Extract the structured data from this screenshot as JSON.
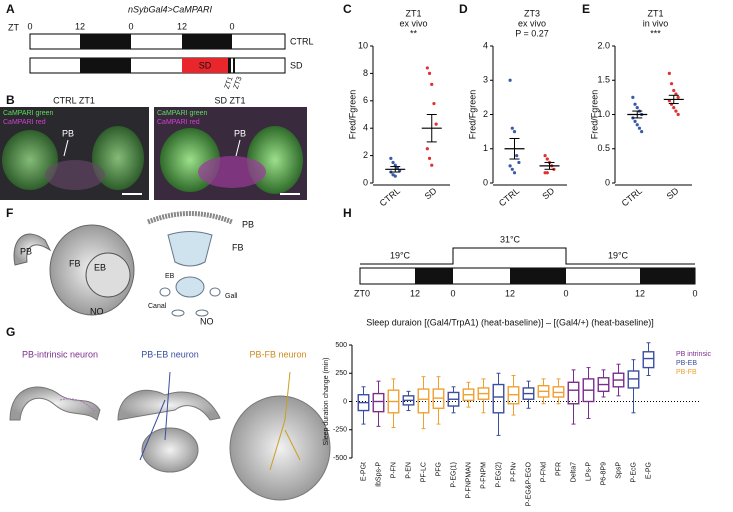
{
  "figure": {
    "panel_labels": [
      "A",
      "B",
      "C",
      "D",
      "E",
      "F",
      "G",
      "H"
    ],
    "a": {
      "title": "nSybGal4>CaMPARI",
      "zt": "ZT",
      "zt_ticks": [
        "0",
        "12",
        "0",
        "12",
        "0"
      ],
      "rows": [
        "CTRL",
        "SD"
      ],
      "sd_label": "SD",
      "marks": [
        "ZT1",
        "ZT3"
      ]
    },
    "b": {
      "images": [
        "CTRL ZT1",
        "SD ZT1"
      ],
      "channels": [
        "CaMPARI green",
        "CaMPARI red"
      ],
      "arrow": "PB"
    },
    "f": {
      "render_labels": [
        "PB",
        "FB",
        "EB",
        "NO"
      ],
      "schematic_labels": [
        "PB",
        "FB",
        "EB",
        "Gall",
        "Canal",
        "NO"
      ]
    },
    "g": {
      "titles": [
        "PB-intrinsic neuron",
        "PB-EB neuron",
        "PB-FB neuron"
      ]
    },
    "h": {
      "temps": [
        "19°C",
        "31°C",
        "19°C"
      ],
      "zt": "ZT0",
      "zt_ticks": [
        "12",
        "0",
        "12",
        "0",
        "12",
        "0"
      ]
    }
  },
  "chart_data": [
    {
      "type": "dotplot",
      "title": [
        "ZT1",
        "ex vivo"
      ],
      "annotation": "**",
      "ylabel": "Fred/Fgreen",
      "categories": [
        "CTRL",
        "SD"
      ],
      "ylim": [
        0,
        10
      ],
      "yticks": [
        0,
        2,
        4,
        6,
        8,
        10
      ],
      "points": [
        {
          "color": "#3a5ba8",
          "values": [
            1.8,
            1.5,
            1.3,
            1.1,
            0.9,
            0.8,
            0.6,
            0.5
          ]
        },
        {
          "color": "#e03030",
          "values": [
            8.4,
            8.0,
            7.2,
            5.8,
            4.3,
            2.5,
            1.8,
            1.3
          ]
        }
      ],
      "mean": [
        1.0,
        4.0
      ],
      "sem": [
        0.2,
        1.0
      ]
    },
    {
      "type": "dotplot",
      "title": [
        "ZT3",
        "ex vivo"
      ],
      "annotation": "P = 0.27",
      "ylabel": "Fred/Fgreen",
      "categories": [
        "CTRL",
        "SD"
      ],
      "ylim": [
        0,
        4
      ],
      "yticks": [
        0,
        1,
        2,
        3,
        4
      ],
      "points": [
        {
          "color": "#3a5ba8",
          "values": [
            3.0,
            1.6,
            1.5,
            0.8,
            0.6,
            0.5,
            0.4,
            0.3
          ]
        },
        {
          "color": "#e03030",
          "values": [
            0.8,
            0.7,
            0.6,
            0.5,
            0.4,
            0.3,
            0.3
          ]
        }
      ],
      "mean": [
        1.0,
        0.5
      ],
      "sem": [
        0.3,
        0.1
      ]
    },
    {
      "type": "dotplot",
      "title": [
        "ZT1",
        "in vivo"
      ],
      "annotation": "***",
      "ylabel": "Fred/Fgreen",
      "categories": [
        "CTRL",
        "SD"
      ],
      "ylim": [
        0,
        2
      ],
      "yticks": [
        0,
        0.5,
        {
          "value": 1,
          "label": "1.0"
        },
        1.5,
        {
          "value": 2,
          "label": "2.0"
        }
      ],
      "points": [
        {
          "color": "#3a5ba8",
          "values": [
            1.25,
            1.15,
            1.1,
            1.05,
            1.0,
            0.95,
            0.9,
            0.85,
            0.8,
            0.75
          ]
        },
        {
          "color": "#e03030",
          "values": [
            1.6,
            1.45,
            1.35,
            1.3,
            1.25,
            1.2,
            1.15,
            1.1,
            1.05,
            1.0
          ]
        }
      ],
      "mean": [
        1.0,
        1.22
      ],
      "sem": [
        0.05,
        0.06
      ]
    },
    {
      "type": "box",
      "title": "Sleep duraion [(Gal4/TrpA1) (heat-baseline)] – [(Gal4/+) (heat-baseline)]",
      "ylabel": "Sleep duration change (min)",
      "ylim": [
        -500,
        500
      ],
      "yticks": [
        -500,
        -250,
        0,
        250,
        500
      ],
      "categories": [
        "E-PGt",
        "IbSps-P",
        "P-FN",
        "P-EN",
        "PF-LC",
        "PFG",
        "P-EG(1)",
        "P-FNPMAN",
        "P-FNPM",
        "P-EG(2)",
        "P-FNv",
        "P-EG&P-EGO",
        "P-FNd",
        "PFR",
        "Delta7",
        "LPs-P",
        "P6-8P9",
        "SpsP",
        "P-EcG",
        "E-PG"
      ],
      "colors": [
        "#3a4ea0",
        "#7b2d8e",
        "#f0a030",
        "#3a4ea0",
        "#f0a030",
        "#f0a030",
        "#3a4ea0",
        "#f0a030",
        "#f0a030",
        "#3a4ea0",
        "#f0a030",
        "#3a4ea0",
        "#f0a030",
        "#f0a030",
        "#7b2d8e",
        "#7b2d8e",
        "#7b2d8e",
        "#7b2d8e",
        "#3a4ea0",
        "#3a4ea0"
      ],
      "whisker_low": [
        -200,
        -220,
        -230,
        -80,
        -240,
        -200,
        -100,
        -50,
        -100,
        -300,
        -120,
        -60,
        -20,
        -20,
        -200,
        -150,
        40,
        50,
        -100,
        230
      ],
      "q1": [
        -80,
        -90,
        -100,
        -30,
        -100,
        -60,
        -40,
        10,
        20,
        -100,
        -20,
        20,
        40,
        40,
        -20,
        0,
        90,
        130,
        120,
        300
      ],
      "median": [
        -10,
        0,
        0,
        10,
        20,
        30,
        20,
        60,
        70,
        40,
        60,
        70,
        90,
        80,
        100,
        100,
        150,
        190,
        200,
        380
      ],
      "q3": [
        60,
        70,
        100,
        50,
        110,
        110,
        80,
        110,
        120,
        150,
        130,
        120,
        140,
        130,
        170,
        200,
        210,
        250,
        270,
        440
      ],
      "whisker_high": [
        130,
        180,
        200,
        90,
        220,
        220,
        130,
        170,
        200,
        250,
        230,
        180,
        200,
        200,
        280,
        300,
        280,
        330,
        370,
        520
      ],
      "legend": [
        {
          "name": "PB intrinsic",
          "color": "#7b2d8e"
        },
        {
          "name": "PB-EB",
          "color": "#3a4ea0"
        },
        {
          "name": "PB-FB",
          "color": "#f0a030"
        }
      ]
    }
  ]
}
